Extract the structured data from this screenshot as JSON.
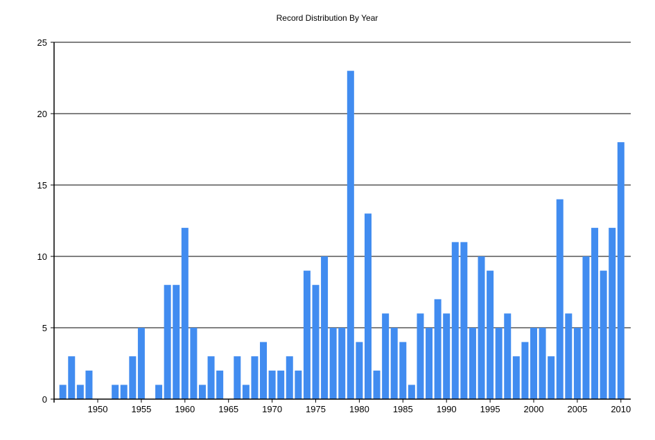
{
  "chart_data": {
    "type": "bar",
    "title": "Record Distribution By Year",
    "xlabel": "",
    "ylabel": "",
    "categories": [
      1946,
      1947,
      1948,
      1949,
      1950,
      1951,
      1952,
      1953,
      1954,
      1955,
      1956,
      1957,
      1958,
      1959,
      1960,
      1961,
      1962,
      1963,
      1964,
      1965,
      1966,
      1967,
      1968,
      1969,
      1970,
      1971,
      1972,
      1973,
      1974,
      1975,
      1976,
      1977,
      1978,
      1979,
      1980,
      1981,
      1982,
      1983,
      1984,
      1985,
      1986,
      1987,
      1988,
      1989,
      1990,
      1991,
      1992,
      1993,
      1994,
      1995,
      1996,
      1997,
      1998,
      1999,
      2000,
      2001,
      2002,
      2003,
      2004,
      2005,
      2006,
      2007,
      2008,
      2009,
      2010
    ],
    "values": [
      1,
      3,
      1,
      2,
      0,
      0,
      1,
      1,
      3,
      5,
      0,
      1,
      8,
      8,
      12,
      5,
      1,
      3,
      2,
      0,
      3,
      1,
      3,
      4,
      2,
      2,
      3,
      2,
      9,
      8,
      10,
      5,
      5,
      23,
      4,
      13,
      2,
      6,
      5,
      4,
      1,
      6,
      5,
      7,
      6,
      11,
      11,
      5,
      10,
      9,
      5,
      6,
      3,
      4,
      5,
      5,
      3,
      14,
      6,
      5,
      10,
      12,
      9,
      12,
      18
    ],
    "ylim": [
      0,
      25
    ],
    "yticks": [
      0,
      5,
      10,
      15,
      20,
      25
    ],
    "xticks": [
      1950,
      1955,
      1960,
      1965,
      1970,
      1975,
      1980,
      1985,
      1990,
      1995,
      2000,
      2005,
      2010
    ],
    "grid": "horizontal",
    "bar_color": "#418CF0",
    "legend": "none"
  }
}
